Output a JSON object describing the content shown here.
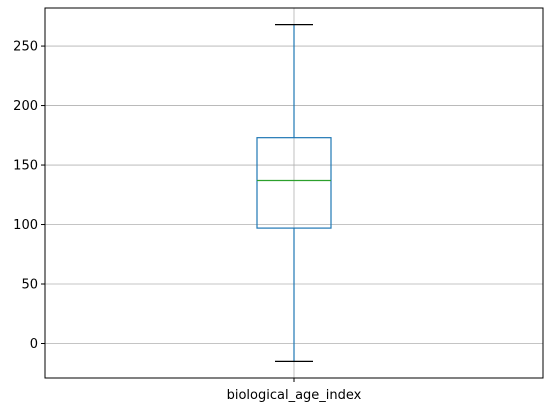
{
  "chart_data": {
    "type": "box",
    "title": "",
    "xlabel": "",
    "ylabel": "",
    "categories": [
      "biological_age_index"
    ],
    "boxes": [
      {
        "label": "biological_age_index",
        "whisker_low": -15,
        "q1": 97,
        "median": 137,
        "q3": 173,
        "whisker_high": 268
      }
    ],
    "yticks": [
      0,
      50,
      100,
      150,
      200,
      250
    ],
    "ylim": [
      -29,
      282
    ],
    "grid": true,
    "colors": {
      "box": "#1f77b4",
      "whisker": "#1f77b4",
      "median": "#2ca02c",
      "cap": "#000000",
      "grid": "#b0b0b0",
      "axis": "#000000"
    }
  }
}
